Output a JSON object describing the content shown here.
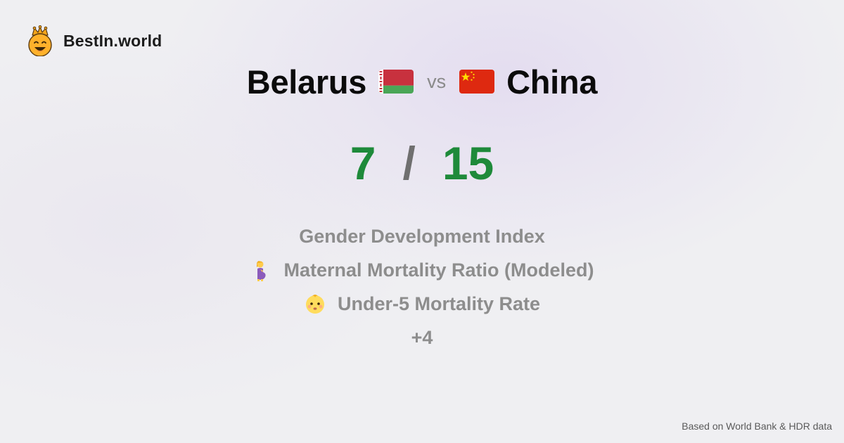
{
  "brand": {
    "name": "BestIn.world",
    "logo_icon": "crowned-smiley-icon"
  },
  "comparison": {
    "country_a": "Belarus",
    "flag_a": "belarus-flag-icon",
    "vs": "vs",
    "country_b": "China",
    "flag_b": "china-flag-icon"
  },
  "score": {
    "a": "7",
    "separator": "/",
    "b": "15"
  },
  "metrics": [
    {
      "label": "Gender Development Index",
      "icon": ""
    },
    {
      "label": "Maternal Mortality Ratio (Modeled)",
      "icon": "pregnant-woman-icon"
    },
    {
      "label": "Under-5 Mortality Rate",
      "icon": "baby-face-icon"
    }
  ],
  "more": "+4",
  "footer": {
    "source": "Based on World Bank & HDR data"
  },
  "colors": {
    "score": "#1e8a3a",
    "muted_text": "#8d8d8d",
    "belarus_red": "#c8313e",
    "belarus_green": "#4aa657",
    "china_red": "#de2910",
    "china_yellow": "#ffde00"
  }
}
